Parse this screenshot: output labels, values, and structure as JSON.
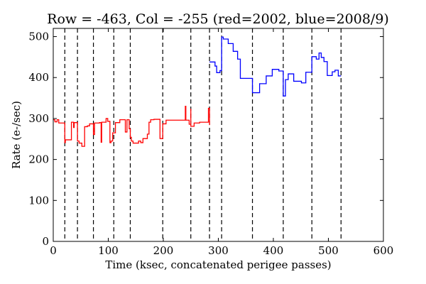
{
  "chart_data": {
    "type": "line",
    "title": "Row = -463, Col = -255 (red=2002, blue=2008/9)",
    "xlabel": "Time (ksec, concatenated perigee passes)",
    "ylabel": "Rate (e-/sec)",
    "xlim": [
      0,
      600
    ],
    "ylim": [
      0,
      520
    ],
    "x_ticks": [
      0,
      100,
      200,
      300,
      400,
      500,
      600
    ],
    "y_ticks": [
      0,
      100,
      200,
      300,
      400,
      500
    ],
    "x_tick_labels": [
      "0",
      "100",
      "200",
      "300",
      "400",
      "500",
      "600"
    ],
    "y_tick_labels": [
      "0",
      "100",
      "200",
      "300",
      "400",
      "500"
    ],
    "grid": false,
    "legend": "none",
    "pass_boundaries": [
      21,
      44,
      73,
      110,
      140,
      199,
      250,
      284,
      306,
      362,
      418,
      470,
      523
    ],
    "series": [
      {
        "color": "#ff0000",
        "step": true,
        "points": [
          [
            0,
            297
          ],
          [
            3,
            292
          ],
          [
            7,
            297
          ],
          [
            10,
            289
          ],
          [
            21,
            241
          ],
          [
            22,
            248
          ],
          [
            33,
            291
          ],
          [
            37,
            278
          ],
          [
            38,
            290
          ],
          [
            44,
            245
          ],
          [
            47,
            240
          ],
          [
            52,
            232
          ],
          [
            57,
            280
          ],
          [
            62,
            282
          ],
          [
            66,
            287
          ],
          [
            73,
            287
          ],
          [
            73,
            261
          ],
          [
            75,
            289
          ],
          [
            84,
            290
          ],
          [
            87,
            242
          ],
          [
            88,
            291
          ],
          [
            96,
            300
          ],
          [
            99,
            293
          ],
          [
            103,
            241
          ],
          [
            105,
            245
          ],
          [
            108,
            265
          ],
          [
            113,
            290
          ],
          [
            121,
            297
          ],
          [
            131,
            267
          ],
          [
            134,
            297
          ],
          [
            138,
            275
          ],
          [
            140,
            254
          ],
          [
            142,
            245
          ],
          [
            145,
            240
          ],
          [
            155,
            245
          ],
          [
            159,
            241
          ],
          [
            163,
            251
          ],
          [
            171,
            262
          ],
          [
            174,
            291
          ],
          [
            177,
            297
          ],
          [
            183,
            298
          ],
          [
            194,
            251
          ],
          [
            199,
            287
          ],
          [
            205,
            296
          ],
          [
            240,
            330
          ],
          [
            241,
            296
          ],
          [
            247,
            286
          ],
          [
            250,
            324
          ],
          [
            250,
            281
          ],
          [
            256,
            289
          ],
          [
            266,
            291
          ],
          [
            282,
            325
          ],
          [
            284,
            284
          ]
        ]
      },
      {
        "color": "#0000ff",
        "step": true,
        "points": [
          [
            284,
            438
          ],
          [
            294,
            428
          ],
          [
            297,
            412
          ],
          [
            303,
            417
          ],
          [
            306,
            499
          ],
          [
            309,
            494
          ],
          [
            318,
            483
          ],
          [
            327,
            464
          ],
          [
            335,
            445
          ],
          [
            340,
            398
          ],
          [
            349,
            398
          ],
          [
            362,
            398
          ],
          [
            362,
            363
          ],
          [
            375,
            385
          ],
          [
            387,
            404
          ],
          [
            398,
            420
          ],
          [
            410,
            416
          ],
          [
            418,
            355
          ],
          [
            422,
            395
          ],
          [
            427,
            409
          ],
          [
            437,
            391
          ],
          [
            451,
            387
          ],
          [
            459,
            413
          ],
          [
            465,
            413
          ],
          [
            470,
            451
          ],
          [
            478,
            445
          ],
          [
            483,
            460
          ],
          [
            487,
            449
          ],
          [
            492,
            439
          ],
          [
            498,
            405
          ],
          [
            507,
            414
          ],
          [
            512,
            418
          ],
          [
            518,
            404
          ],
          [
            523,
            404
          ]
        ]
      }
    ]
  }
}
